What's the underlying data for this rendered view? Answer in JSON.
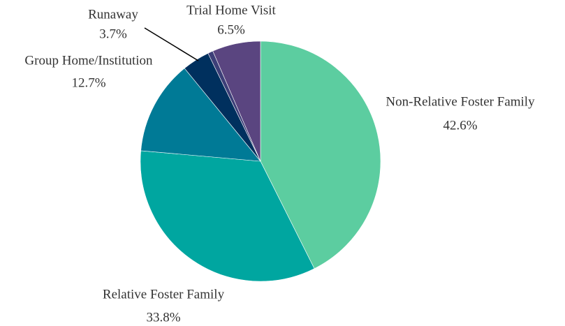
{
  "chart_data": {
    "type": "pie",
    "categories": [
      "Non-Relative Foster Family",
      "Relative Foster Family",
      "Group Home/Institution",
      "Runaway",
      null,
      "Trial Home Visit"
    ],
    "values": [
      42.6,
      33.8,
      12.7,
      3.7,
      0.7,
      6.5
    ],
    "value_labels": [
      "42.6%",
      "33.8%",
      "12.7%",
      "3.7%",
      null,
      "6.5%"
    ],
    "colors": [
      "#5ccda0",
      "#00a6a0",
      "#007a96",
      "#00305e",
      "#3d3f78",
      "#5a4580"
    ]
  }
}
